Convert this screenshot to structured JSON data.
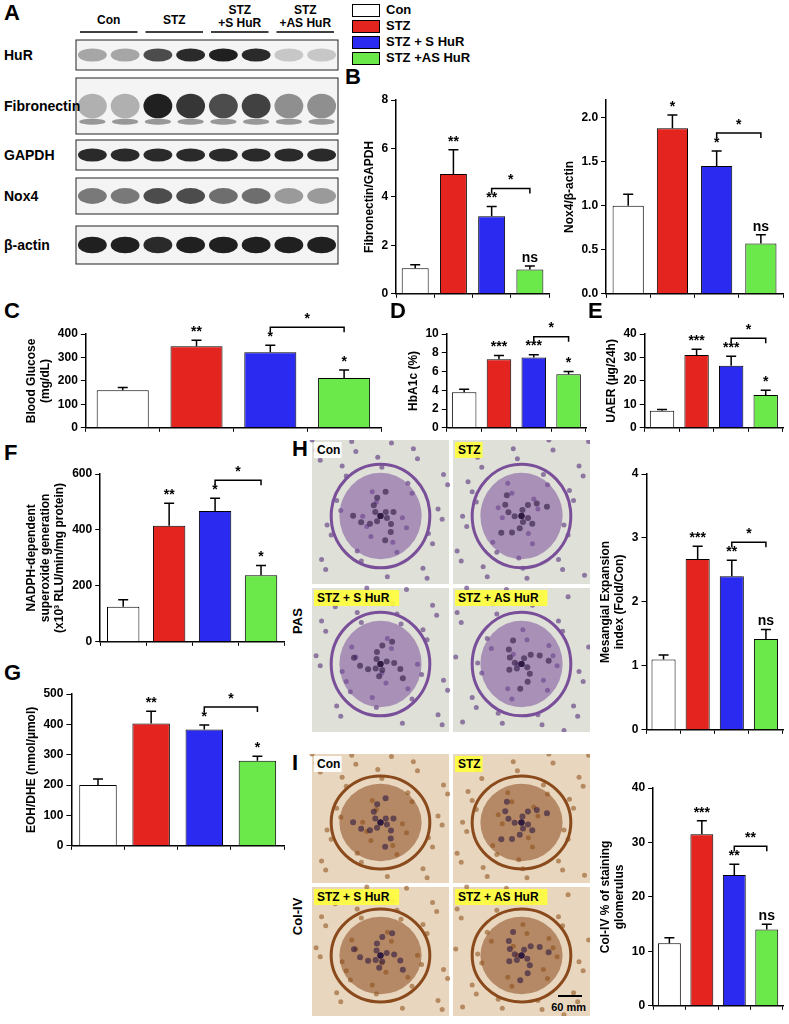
{
  "legend": [
    {
      "name": "Con",
      "color": "#ffffff"
    },
    {
      "name": "STZ",
      "color": "#e3241f"
    },
    {
      "name": "STZ + S HuR",
      "color": "#2a2af0"
    },
    {
      "name": "STZ +AS HuR",
      "color": "#6be84a"
    }
  ],
  "blot": {
    "panel": "A",
    "columns": [
      [
        "Con"
      ],
      [
        "STZ"
      ],
      [
        "STZ",
        "+S HuR"
      ],
      [
        "STZ",
        "+AS HuR"
      ]
    ],
    "rows": [
      "HuR",
      "Fibronectin",
      "GAPDH",
      "Nox4",
      "β-actin"
    ]
  },
  "chart_data": [
    {
      "panel": "B",
      "type": "bar",
      "y_label": "Fibronectin/GAPDH",
      "categories": [
        null,
        null,
        null,
        null
      ],
      "values": [
        1.05,
        4.95,
        3.2,
        1.0
      ],
      "errors": [
        0.15,
        1.0,
        0.4,
        0.15
      ],
      "colors": [
        "#ffffff",
        "#e3241f",
        "#2a2af0",
        "#6be84a"
      ],
      "marks": [
        null,
        "**",
        "**",
        "ns"
      ],
      "bracket": "*",
      "ylim": [
        0,
        8
      ],
      "yticks": [
        0,
        2,
        4,
        6,
        8
      ],
      "grid": false,
      "tick_labels": "y"
    },
    {
      "type": "bar",
      "y_label": "Nox4/β-actin",
      "categories": [
        null,
        null,
        null,
        null
      ],
      "values": [
        1.0,
        1.88,
        1.45,
        0.57
      ],
      "errors": [
        0.13,
        0.15,
        0.17,
        0.1
      ],
      "colors": [
        "#ffffff",
        "#e3241f",
        "#2a2af0",
        "#6be84a"
      ],
      "marks": [
        null,
        "*",
        "*",
        "ns"
      ],
      "bracket": "*",
      "ylim": [
        0,
        2.2
      ],
      "yticks": [
        {
          "value": 0,
          "label": "0.0"
        },
        {
          "value": 0.5,
          "label": "0.5"
        },
        {
          "value": 1,
          "label": "1.0"
        },
        {
          "value": 1.5,
          "label": "1.5"
        },
        {
          "value": 2,
          "label": "2.0"
        }
      ],
      "grid": false,
      "tick_labels": "y"
    },
    {
      "panel": "C",
      "type": "bar",
      "y_label": [
        "Blood Glucose",
        "(mg/dL)"
      ],
      "categories": [
        null,
        null,
        null,
        null
      ],
      "values": [
        160,
        348,
        322,
        212
      ],
      "errors": [
        12,
        25,
        30,
        35
      ],
      "colors": [
        "#ffffff",
        "#e3241f",
        "#2a2af0",
        "#6be84a"
      ],
      "marks": [
        null,
        "**",
        "*",
        "*"
      ],
      "bracket": "*",
      "ylim": [
        0,
        400
      ],
      "yticks": [
        0,
        100,
        200,
        300,
        400
      ],
      "grid": false,
      "tick_labels": "y"
    },
    {
      "panel": "D",
      "type": "bar",
      "y_label": "HbA1c (%)",
      "categories": [
        null,
        null,
        null,
        null
      ],
      "values": [
        3.8,
        7.3,
        7.5,
        5.7
      ],
      "errors": [
        0.3,
        0.4,
        0.3,
        0.3
      ],
      "colors": [
        "#ffffff",
        "#e3241f",
        "#2a2af0",
        "#6be84a"
      ],
      "marks": [
        null,
        "***",
        "***",
        "*"
      ],
      "bracket": "*",
      "ylim": [
        0,
        10
      ],
      "yticks": [
        0,
        2,
        4,
        6,
        8,
        10
      ],
      "grid": false,
      "tick_labels": "y"
    },
    {
      "panel": "E",
      "type": "bar",
      "y_label": "UAER (µg/24h)",
      "categories": [
        null,
        null,
        null,
        null
      ],
      "values": [
        7.3,
        31,
        26.5,
        14
      ],
      "errors": [
        0.5,
        2.5,
        4,
        2
      ],
      "colors": [
        "#ffffff",
        "#e3241f",
        "#2a2af0",
        "#6be84a"
      ],
      "marks": [
        null,
        "***",
        "***",
        "*"
      ],
      "bracket": "*",
      "ylim": [
        0,
        40
      ],
      "yticks": [
        0,
        10,
        20,
        30,
        40
      ],
      "grid": false,
      "tick_labels": "y"
    },
    {
      "panel": "F",
      "type": "bar",
      "y_label": [
        "NADPH-dependent",
        "superoxide generation",
        "(x10³ RLU/min/mg protein)"
      ],
      "categories": [
        null,
        null,
        null,
        null
      ],
      "values": [
        125,
        415,
        468,
        238
      ],
      "errors": [
        25,
        80,
        45,
        35
      ],
      "colors": [
        "#ffffff",
        "#e3241f",
        "#2a2af0",
        "#6be84a"
      ],
      "marks": [
        null,
        "**",
        "*",
        "*"
      ],
      "bracket": "*",
      "ylim": [
        0,
        600
      ],
      "yticks": [
        0,
        200,
        400,
        600
      ],
      "grid": false,
      "tick_labels": "y"
    },
    {
      "panel": "G",
      "type": "bar",
      "y_label": "EOH/DHE (nmol/µmol)",
      "categories": [
        null,
        null,
        null,
        null
      ],
      "values": [
        200,
        403,
        383,
        280
      ],
      "errors": [
        20,
        40,
        15,
        15
      ],
      "colors": [
        "#ffffff",
        "#e3241f",
        "#2a2af0",
        "#6be84a"
      ],
      "marks": [
        null,
        "**",
        "*",
        "*"
      ],
      "bracket": "*",
      "ylim": [
        0,
        500
      ],
      "yticks": [
        0,
        100,
        200,
        300,
        400,
        500
      ],
      "grid": false,
      "tick_labels": "y"
    },
    {
      "type": "bar",
      "y_label": [
        "Mesangial Expansion",
        "index (Fold/Con)"
      ],
      "categories": [
        null,
        null,
        null,
        null
      ],
      "values": [
        1.1,
        2.67,
        2.4,
        1.42
      ],
      "errors": [
        0.07,
        0.2,
        0.25,
        0.15
      ],
      "colors": [
        "#ffffff",
        "#e3241f",
        "#2a2af0",
        "#6be84a"
      ],
      "marks": [
        null,
        "***",
        "**",
        "ns"
      ],
      "bracket": "*",
      "ylim": [
        0,
        4
      ],
      "yticks": [
        0,
        1,
        2,
        3,
        4
      ],
      "grid": false,
      "tick_labels": "y"
    },
    {
      "type": "bar",
      "y_label": [
        "Col-IV % of staining",
        "glomerulus"
      ],
      "categories": [
        null,
        null,
        null,
        null
      ],
      "values": [
        11.5,
        31.5,
        24,
        14
      ],
      "errors": [
        1,
        2.5,
        2,
        1
      ],
      "colors": [
        "#ffffff",
        "#e3241f",
        "#2a2af0",
        "#6be84a"
      ],
      "marks": [
        null,
        "***",
        "**",
        "ns"
      ],
      "bracket": "**",
      "ylim": [
        0,
        40
      ],
      "yticks": [
        0,
        10,
        20,
        30,
        40
      ],
      "grid": false,
      "tick_labels": "y"
    }
  ],
  "histology": [
    {
      "panel": "H",
      "stain": "PAS",
      "images": [
        "Con",
        "STZ",
        "STZ + S HuR",
        "STZ + AS HuR"
      ]
    },
    {
      "panel": "I",
      "stain": "Col-IV",
      "images": [
        "Con",
        "STZ",
        "STZ + S HuR",
        "STZ + AS HuR"
      ],
      "scale_bar": "60 mm"
    }
  ]
}
